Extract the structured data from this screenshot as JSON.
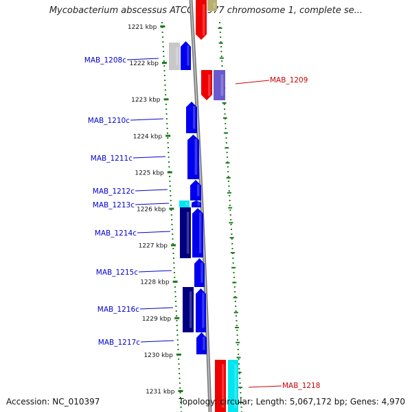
{
  "title": "Mycobacterium abscessus ATCC 19977 chromosome 1, complete se...",
  "footer": {
    "accession": "Accession: NC_010397",
    "summary": "Topology: circular; Length: 5,067,172 bp; Genes: 4,970"
  },
  "ticks": [
    "1221 kbp",
    "1222 kbp",
    "1223 kbp",
    "1224 kbp",
    "1225 kbp",
    "1226 kbp",
    "1227 kbp",
    "1228 kbp",
    "1229 kbp",
    "1230 kbp",
    "1231 kbp"
  ],
  "labels": {
    "left": [
      "MAB_1208c",
      "MAB_1210c",
      "MAB_1211c",
      "MAB_1212c",
      "MAB_1213c",
      "MAB_1214c",
      "MAB_1215c",
      "MAB_1216c",
      "MAB_1217c"
    ],
    "right": [
      "MAB_1209",
      "MAB_1218"
    ]
  },
  "colors": {
    "minus_strand": "#0000ee",
    "minus_strand_dark": "#000080",
    "plus_strand": "#ee0000",
    "cyan_feature": "#00e5ee",
    "gray_feature": "#c8c8c8",
    "purple_feature": "#6a5acd",
    "tick_mark": "#1a7a1a",
    "backbone": "#888888"
  }
}
